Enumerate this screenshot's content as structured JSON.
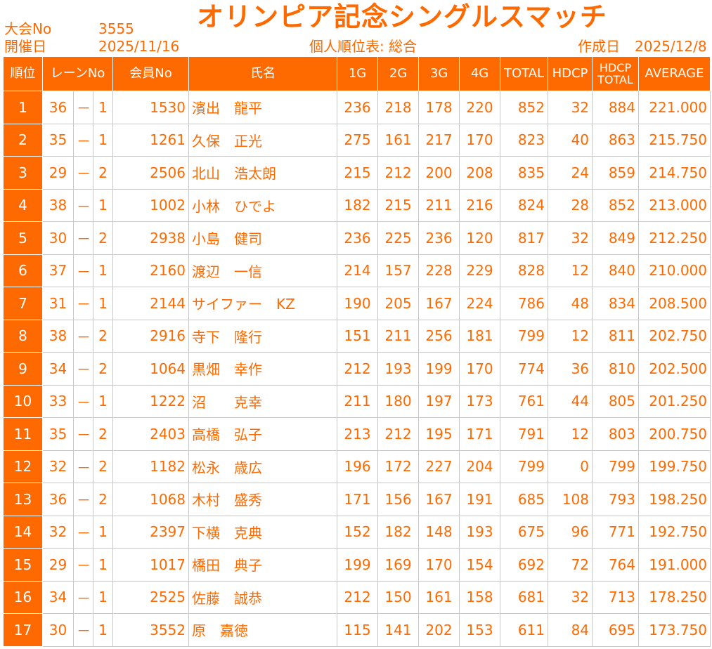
{
  "header": {
    "meet_label": "大会No",
    "meet_no": "3555",
    "date_label": "開催日",
    "date": "2025/11/16",
    "title": "オリンピア記念シングルスマッチ",
    "subtitle": "個人順位表: 総合",
    "created_label": "作成日",
    "created_date": "2025/12/8"
  },
  "columns": {
    "rank": "順位",
    "lane": "レーンNo",
    "member": "会員No",
    "name": "氏名",
    "g1": "1G",
    "g2": "2G",
    "g3": "3G",
    "g4": "4G",
    "total": "TOTAL",
    "hdcp": "HDCP",
    "hdcp_total_1": "HDCP",
    "hdcp_total_2": "TOTAL",
    "average": "AVERAGE"
  },
  "rows": [
    {
      "rank": "1",
      "lane": "36",
      "sep": "－",
      "box": "1",
      "member": "1530",
      "name": "濱出　龍平",
      "g1": "236",
      "g2": "218",
      "g3": "178",
      "g4": "220",
      "total": "852",
      "hdcp": "32",
      "hdcp_total": "884",
      "avg": "221.000"
    },
    {
      "rank": "2",
      "lane": "35",
      "sep": "－",
      "box": "1",
      "member": "1261",
      "name": "久保　正光",
      "g1": "275",
      "g2": "161",
      "g3": "217",
      "g4": "170",
      "total": "823",
      "hdcp": "40",
      "hdcp_total": "863",
      "avg": "215.750"
    },
    {
      "rank": "3",
      "lane": "29",
      "sep": "－",
      "box": "2",
      "member": "2506",
      "name": "北山　浩太朗",
      "g1": "215",
      "g2": "212",
      "g3": "200",
      "g4": "208",
      "total": "835",
      "hdcp": "24",
      "hdcp_total": "859",
      "avg": "214.750"
    },
    {
      "rank": "4",
      "lane": "38",
      "sep": "－",
      "box": "1",
      "member": "1002",
      "name": "小林　ひでよ",
      "g1": "182",
      "g2": "215",
      "g3": "211",
      "g4": "216",
      "total": "824",
      "hdcp": "28",
      "hdcp_total": "852",
      "avg": "213.000"
    },
    {
      "rank": "5",
      "lane": "30",
      "sep": "－",
      "box": "2",
      "member": "2938",
      "name": "小島　健司",
      "g1": "236",
      "g2": "225",
      "g3": "236",
      "g4": "120",
      "total": "817",
      "hdcp": "32",
      "hdcp_total": "849",
      "avg": "212.250"
    },
    {
      "rank": "6",
      "lane": "37",
      "sep": "－",
      "box": "1",
      "member": "2160",
      "name": "渡辺　一信",
      "g1": "214",
      "g2": "157",
      "g3": "228",
      "g4": "229",
      "total": "828",
      "hdcp": "12",
      "hdcp_total": "840",
      "avg": "210.000"
    },
    {
      "rank": "7",
      "lane": "31",
      "sep": "－",
      "box": "1",
      "member": "2144",
      "name": "サイファー　KZ",
      "g1": "190",
      "g2": "205",
      "g3": "167",
      "g4": "224",
      "total": "786",
      "hdcp": "48",
      "hdcp_total": "834",
      "avg": "208.500"
    },
    {
      "rank": "8",
      "lane": "38",
      "sep": "－",
      "box": "2",
      "member": "2916",
      "name": "寺下　隆行",
      "g1": "151",
      "g2": "211",
      "g3": "256",
      "g4": "181",
      "total": "799",
      "hdcp": "12",
      "hdcp_total": "811",
      "avg": "202.750"
    },
    {
      "rank": "9",
      "lane": "34",
      "sep": "－",
      "box": "2",
      "member": "1064",
      "name": "黒畑　幸作",
      "g1": "212",
      "g2": "193",
      "g3": "199",
      "g4": "170",
      "total": "774",
      "hdcp": "36",
      "hdcp_total": "810",
      "avg": "202.500"
    },
    {
      "rank": "10",
      "lane": "33",
      "sep": "－",
      "box": "1",
      "member": "1222",
      "name": "沼　　克幸",
      "g1": "211",
      "g2": "180",
      "g3": "197",
      "g4": "173",
      "total": "761",
      "hdcp": "44",
      "hdcp_total": "805",
      "avg": "201.250"
    },
    {
      "rank": "11",
      "lane": "35",
      "sep": "－",
      "box": "2",
      "member": "2403",
      "name": "高橋　弘子",
      "g1": "213",
      "g2": "212",
      "g3": "195",
      "g4": "171",
      "total": "791",
      "hdcp": "12",
      "hdcp_total": "803",
      "avg": "200.750"
    },
    {
      "rank": "12",
      "lane": "32",
      "sep": "－",
      "box": "2",
      "member": "1182",
      "name": "松永　歳広",
      "g1": "196",
      "g2": "172",
      "g3": "227",
      "g4": "204",
      "total": "799",
      "hdcp": "0",
      "hdcp_total": "799",
      "avg": "199.750"
    },
    {
      "rank": "13",
      "lane": "36",
      "sep": "－",
      "box": "2",
      "member": "1068",
      "name": "木村　盛秀",
      "g1": "171",
      "g2": "156",
      "g3": "167",
      "g4": "191",
      "total": "685",
      "hdcp": "108",
      "hdcp_total": "793",
      "avg": "198.250"
    },
    {
      "rank": "14",
      "lane": "32",
      "sep": "－",
      "box": "1",
      "member": "2397",
      "name": "下横　克典",
      "g1": "152",
      "g2": "182",
      "g3": "148",
      "g4": "193",
      "total": "675",
      "hdcp": "96",
      "hdcp_total": "771",
      "avg": "192.750"
    },
    {
      "rank": "15",
      "lane": "29",
      "sep": "－",
      "box": "1",
      "member": "1017",
      "name": "橋田　典子",
      "g1": "199",
      "g2": "169",
      "g3": "170",
      "g4": "154",
      "total": "692",
      "hdcp": "72",
      "hdcp_total": "764",
      "avg": "191.000"
    },
    {
      "rank": "16",
      "lane": "34",
      "sep": "－",
      "box": "1",
      "member": "2525",
      "name": "佐藤　誠恭",
      "g1": "212",
      "g2": "150",
      "g3": "161",
      "g4": "158",
      "total": "681",
      "hdcp": "32",
      "hdcp_total": "713",
      "avg": "178.250"
    },
    {
      "rank": "17",
      "lane": "30",
      "sep": "－",
      "box": "1",
      "member": "3552",
      "name": "原　嘉徳",
      "g1": "115",
      "g2": "141",
      "g3": "202",
      "g4": "153",
      "total": "611",
      "hdcp": "84",
      "hdcp_total": "695",
      "avg": "173.750"
    }
  ],
  "colors": {
    "accent": "#ff6a00",
    "grid": "#c8c8c8",
    "header_text": "#ffffff"
  }
}
